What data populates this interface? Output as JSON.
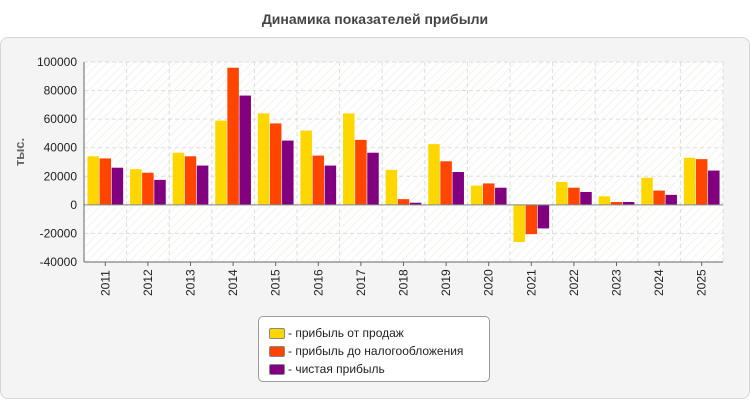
{
  "chart_data": {
    "type": "bar",
    "title": "Динамика показателей прибыли",
    "ylabel": "тыс.",
    "xlabel": "",
    "ylim": [
      -40000,
      100000
    ],
    "yticks": [
      -40000,
      -20000,
      0,
      20000,
      40000,
      60000,
      80000,
      100000
    ],
    "grid": true,
    "legend_position": "bottom-center",
    "categories": [
      "2011",
      "2012",
      "2013",
      "2014",
      "2015",
      "2016",
      "2017",
      "2018",
      "2019",
      "2020",
      "2021",
      "2022",
      "2023",
      "2024",
      "2025"
    ],
    "series": [
      {
        "name": "- прибыль от продаж",
        "color": "#ffd700",
        "values": [
          34000,
          25000,
          36500,
          59000,
          64000,
          52000,
          64000,
          24500,
          42500,
          13500,
          -26000,
          16000,
          6000,
          19000,
          33000
        ]
      },
      {
        "name": "- прибыль до налогообложения",
        "color": "#ff4500",
        "values": [
          32500,
          22500,
          34000,
          96000,
          57000,
          34500,
          45500,
          4000,
          30500,
          15000,
          -20500,
          12000,
          2000,
          10000,
          32000
        ]
      },
      {
        "name": "- чистая прибыль",
        "color": "#800080",
        "values": [
          26000,
          17500,
          27500,
          76500,
          45000,
          27500,
          36500,
          1500,
          23000,
          12000,
          -16500,
          9000,
          2000,
          7000,
          24000
        ]
      }
    ]
  }
}
